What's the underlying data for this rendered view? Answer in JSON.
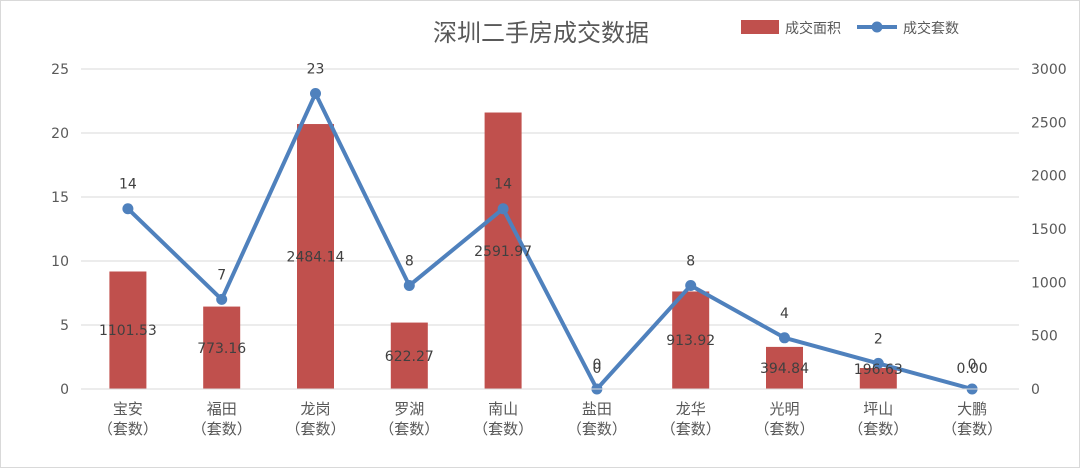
{
  "chart_data": {
    "type": "bar",
    "title": "深圳二手房成交数据",
    "categories": [
      [
        "宝安",
        "（套数）"
      ],
      [
        "福田",
        "（套数）"
      ],
      [
        "龙岗",
        "（套数）"
      ],
      [
        "罗湖",
        "（套数）"
      ],
      [
        "南山",
        "（套数）"
      ],
      [
        "盐田",
        "（套数）"
      ],
      [
        "龙华",
        "（套数）"
      ],
      [
        "光明",
        "（套数）"
      ],
      [
        "坪山",
        "（套数）"
      ],
      [
        "大鹏",
        "（套数）"
      ]
    ],
    "series": [
      {
        "name": "成交面积",
        "type": "bar",
        "axis": "left",
        "values": [
          9.18,
          6.44,
          20.7,
          5.19,
          21.6,
          0,
          7.62,
          3.29,
          1.64,
          0
        ],
        "labels": [
          "1101.53",
          "773.16",
          "2484.14",
          "622.27",
          "2591.97",
          "0",
          "913.92",
          "394.84",
          "196.63",
          "0.00"
        ],
        "color": "#c0504d"
      },
      {
        "name": "成交套数",
        "type": "line",
        "axis": "right",
        "values": [
          1690,
          840,
          2770,
          970,
          1690,
          0,
          970,
          480,
          240,
          0
        ],
        "labels": [
          "14",
          "7",
          "23",
          "8",
          "14",
          "0",
          "8",
          "4",
          "2",
          "0"
        ],
        "color": "#4f81bd"
      }
    ],
    "left_axis": {
      "min": 0,
      "max": 25,
      "ticks": [
        "0",
        "5",
        "10",
        "15",
        "20",
        "25"
      ]
    },
    "right_axis": {
      "min": 0,
      "max": 3000,
      "ticks": [
        "0",
        "500",
        "1000",
        "1500",
        "2000",
        "2500",
        "3000"
      ]
    },
    "grid": true,
    "legend_position": "top-right"
  }
}
